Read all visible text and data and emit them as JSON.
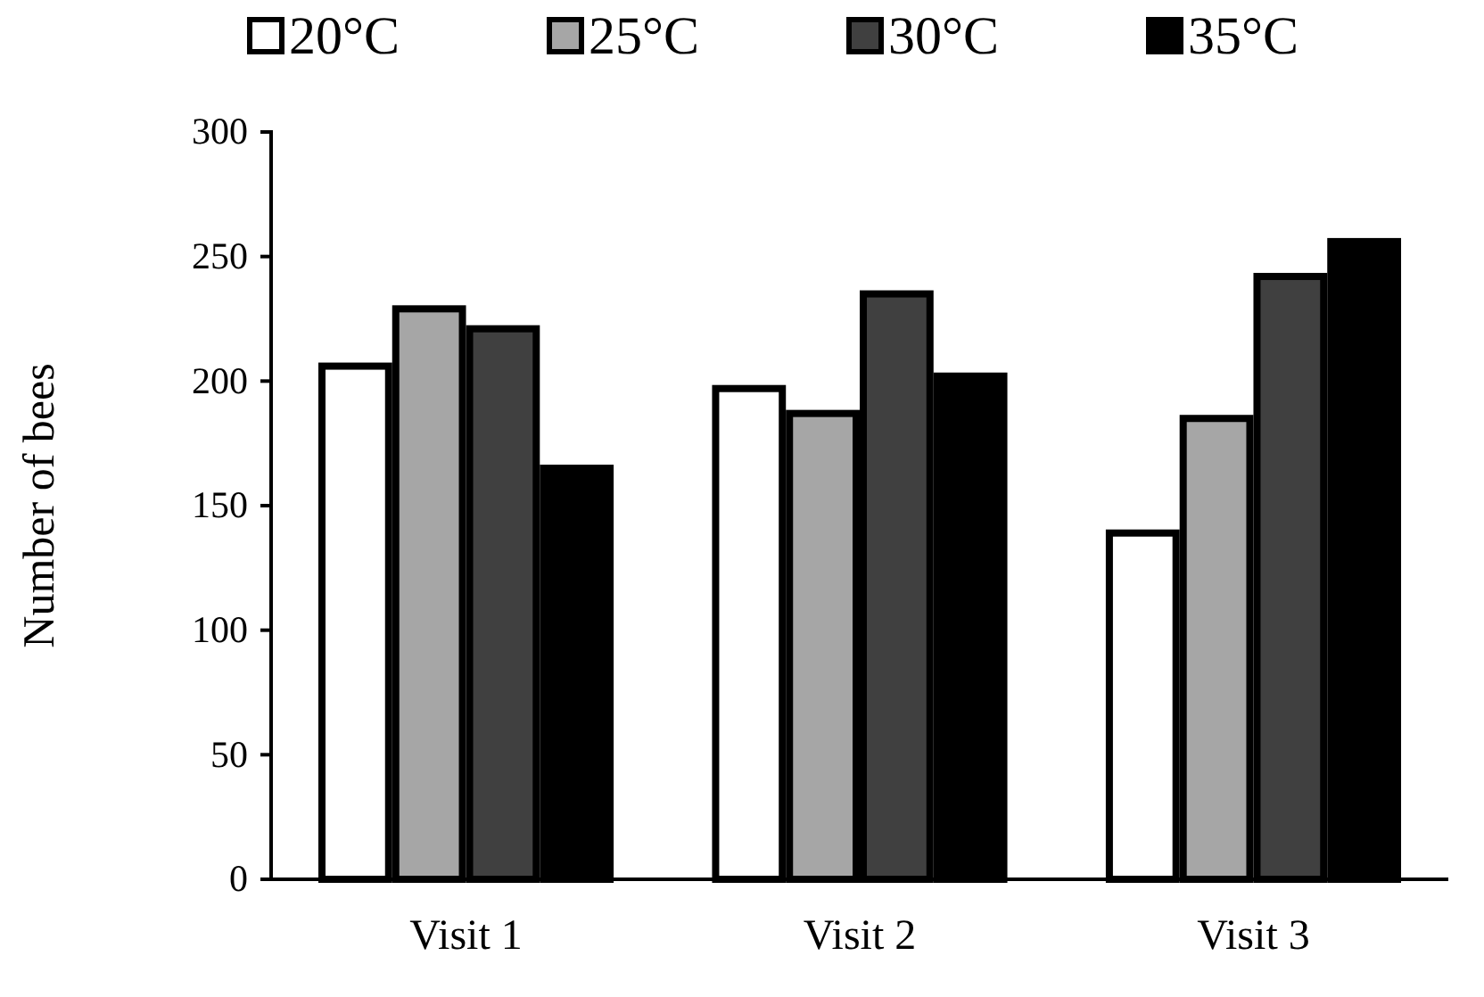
{
  "chart_data": {
    "type": "bar",
    "ylabel": "Number of bees",
    "categories": [
      "Visit 1",
      "Visit 2",
      "Visit 3"
    ],
    "series": [
      {
        "name": "20°C",
        "color": "#ffffff",
        "values": [
          206,
          197,
          139
        ]
      },
      {
        "name": "25°C",
        "color": "#a6a6a6",
        "values": [
          229,
          187,
          185
        ]
      },
      {
        "name": "30°C",
        "color": "#404040",
        "values": [
          221,
          235,
          242
        ]
      },
      {
        "name": "35°C",
        "color": "#000000",
        "values": [
          165,
          202,
          256
        ]
      }
    ],
    "ylim": [
      0,
      300
    ],
    "yticks": [
      0,
      50,
      100,
      150,
      200,
      250,
      300
    ],
    "grid": false,
    "legend": "top"
  }
}
